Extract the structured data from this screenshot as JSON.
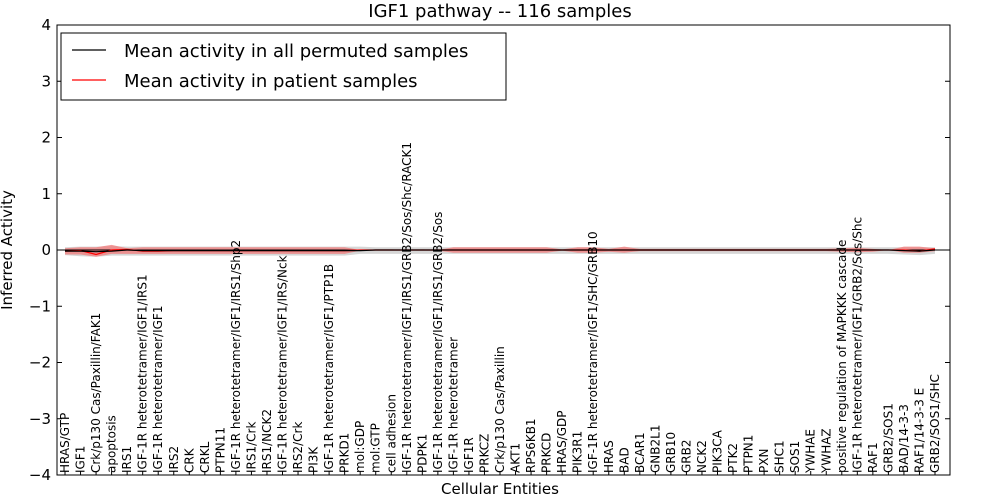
{
  "chart_data": {
    "type": "line",
    "title": "IGF1 pathway -- 116 samples",
    "xlabel": "Cellular Entities",
    "ylabel": "Inferred Activity",
    "ylim": [
      -4,
      4
    ],
    "yticks": [
      "−4",
      "−3",
      "−2",
      "−1",
      "0",
      "1",
      "2",
      "3",
      "4"
    ],
    "legend": {
      "placement": "top-left",
      "entries": [
        {
          "label": "Mean activity in all permuted samples",
          "color": "#000000"
        },
        {
          "label": "Mean activity in patient samples",
          "color": "#ff0000"
        }
      ]
    },
    "colors": {
      "permuted": "#000000",
      "patient": "#ff0000",
      "patient_band": "#f08080",
      "permuted_band": "#c8c8c8",
      "zero_line": "#000000"
    },
    "categories": [
      "HRAS/GTP",
      "IGF1",
      "Crk/p130 Cas/Paxillin/FAK1",
      "apoptosis",
      "IRS1",
      "IGF-1R heterotetramer/IGF1/IRS1",
      "IGF-1R heterotetramer/IGF1",
      "IRS2",
      "CRK",
      "CRKL",
      "PTPN11",
      "IGF-1R heterotetramer/IGF1/IRS1/Shp2",
      "IRS1/Crk",
      "IRS1/NCK2",
      "IGF-1R heterotetramer/IGF1/IRS/Nck",
      "IRS2/Crk",
      "PI3K",
      "IGF-1R heterotetramer/IGF1/PTP1B",
      "PRKD1",
      "mol:GDP",
      "mol:GTP",
      "cell adhesion",
      "IGF-1R heterotetramer/IGF1/IRS1/GRB2/Sos/Shc/RACK1",
      "PDPK1",
      "IGF-1R heterotetramer/IGF1/IRS1/GRB2/Sos",
      "IGF-1R heterotetramer",
      "IGF1R",
      "PRKCZ",
      "Crk/p130 Cas/Paxillin",
      "AKT1",
      "RPS6KB1",
      "PRKCD",
      "HRAS/GDP",
      "PIK3R1",
      "IGF-1R heterotetramer/IGF1/SHC/GRB10",
      "HRAS",
      "BAD",
      "BCAR1",
      "GNB2L1",
      "GRB10",
      "GRB2",
      "NCK2",
      "PIK3CA",
      "PTK2",
      "PTPN1",
      "PXN",
      "SHC1",
      "SOS1",
      "YWHAE",
      "YWHAZ",
      "positive regulation of MAPKKK cascade",
      "IGF-1R heterotetramer/IGF1/GRB2/Sos/Shc",
      "RAF1",
      "GRB2/SOS1",
      "BAD/14-3-3",
      "RAF1/14-3-3 E",
      "GRB2/SOS1/SHC"
    ],
    "series": [
      {
        "name": "Mean activity in all permuted samples",
        "values": [
          -0.02,
          -0.02,
          -0.03,
          -0.02,
          0.0,
          -0.01,
          -0.01,
          -0.01,
          -0.01,
          -0.01,
          -0.01,
          -0.01,
          -0.01,
          -0.01,
          -0.01,
          -0.01,
          -0.01,
          -0.01,
          -0.01,
          -0.01,
          0.0,
          0.0,
          0.0,
          0.0,
          0.0,
          0.0,
          0.0,
          0.0,
          0.0,
          0.0,
          0.0,
          0.0,
          0.0,
          0.0,
          0.0,
          0.0,
          0.0,
          0.0,
          0.0,
          0.0,
          0.0,
          0.0,
          0.0,
          0.0,
          0.0,
          0.0,
          0.0,
          0.0,
          0.0,
          0.0,
          0.0,
          0.0,
          0.0,
          0.0,
          -0.01,
          -0.02,
          0.0
        ]
      },
      {
        "name": "Mean activity in patient samples",
        "values": [
          -0.02,
          -0.01,
          -0.08,
          0.0,
          0.01,
          -0.02,
          -0.02,
          -0.01,
          -0.01,
          -0.01,
          -0.01,
          -0.01,
          -0.01,
          -0.01,
          -0.01,
          -0.01,
          -0.01,
          -0.01,
          -0.01,
          0.0,
          0.0,
          0.0,
          0.0,
          0.0,
          0.0,
          0.0,
          0.0,
          0.0,
          0.0,
          0.0,
          0.0,
          0.0,
          0.0,
          0.0,
          0.0,
          0.0,
          0.0,
          0.0,
          0.0,
          0.0,
          0.0,
          0.0,
          0.0,
          0.0,
          0.0,
          0.0,
          0.0,
          0.0,
          0.0,
          0.0,
          0.0,
          0.0,
          0.0,
          0.0,
          0.0,
          -0.02,
          0.02
        ]
      }
    ],
    "patient_band": {
      "upper": [
        0.03,
        0.05,
        0.05,
        0.09,
        0.03,
        0.05,
        0.05,
        0.05,
        0.05,
        0.05,
        0.05,
        0.05,
        0.05,
        0.05,
        0.05,
        0.05,
        0.05,
        0.05,
        0.05,
        0.0,
        0.01,
        0.01,
        0.0,
        0.01,
        0.0,
        0.05,
        0.05,
        0.05,
        0.05,
        0.05,
        0.05,
        0.05,
        0.01,
        0.05,
        0.05,
        0.02,
        0.06,
        0.02,
        0.02,
        0.02,
        0.02,
        0.02,
        0.02,
        0.02,
        0.02,
        0.02,
        0.02,
        0.02,
        0.02,
        0.02,
        0.03,
        0.04,
        0.02,
        0.0,
        0.06,
        0.06,
        0.03
      ],
      "lower": [
        -0.08,
        -0.08,
        -0.12,
        -0.07,
        -0.07,
        -0.07,
        -0.07,
        -0.07,
        -0.07,
        -0.07,
        -0.07,
        -0.07,
        -0.07,
        -0.07,
        -0.07,
        -0.07,
        -0.07,
        -0.07,
        -0.07,
        -0.01,
        -0.01,
        -0.01,
        -0.01,
        -0.01,
        -0.01,
        -0.05,
        -0.05,
        -0.05,
        -0.05,
        -0.05,
        -0.05,
        -0.05,
        -0.01,
        -0.05,
        -0.05,
        -0.03,
        -0.05,
        -0.02,
        -0.02,
        -0.02,
        -0.02,
        -0.02,
        -0.02,
        -0.02,
        -0.02,
        -0.02,
        -0.02,
        -0.02,
        -0.02,
        -0.02,
        -0.03,
        -0.04,
        -0.03,
        0.0,
        -0.05,
        -0.05,
        -0.02
      ]
    },
    "permuted_band": {
      "upper": [
        0.05,
        0.06,
        0.06,
        0.07,
        0.06,
        0.06,
        0.06,
        0.06,
        0.06,
        0.06,
        0.06,
        0.06,
        0.06,
        0.06,
        0.06,
        0.06,
        0.06,
        0.06,
        0.06,
        0.06,
        0.05,
        0.05,
        0.05,
        0.05,
        0.05,
        0.05,
        0.05,
        0.05,
        0.05,
        0.05,
        0.05,
        0.05,
        0.05,
        0.05,
        0.05,
        0.05,
        0.05,
        0.05,
        0.05,
        0.05,
        0.05,
        0.05,
        0.05,
        0.05,
        0.05,
        0.05,
        0.05,
        0.05,
        0.05,
        0.05,
        0.05,
        0.05,
        0.05,
        0.05,
        0.05,
        0.05,
        0.05
      ],
      "lower": [
        -0.09,
        -0.11,
        -0.12,
        -0.1,
        -0.1,
        -0.1,
        -0.1,
        -0.1,
        -0.1,
        -0.1,
        -0.1,
        -0.1,
        -0.1,
        -0.1,
        -0.1,
        -0.1,
        -0.1,
        -0.1,
        -0.1,
        -0.07,
        -0.07,
        -0.07,
        -0.07,
        -0.07,
        -0.07,
        -0.07,
        -0.07,
        -0.07,
        -0.07,
        -0.07,
        -0.07,
        -0.07,
        -0.07,
        -0.07,
        -0.07,
        -0.07,
        -0.07,
        -0.07,
        -0.07,
        -0.07,
        -0.07,
        -0.07,
        -0.07,
        -0.07,
        -0.07,
        -0.07,
        -0.07,
        -0.07,
        -0.07,
        -0.07,
        -0.07,
        -0.07,
        -0.07,
        -0.07,
        -0.08,
        -0.09,
        -0.07
      ]
    }
  }
}
